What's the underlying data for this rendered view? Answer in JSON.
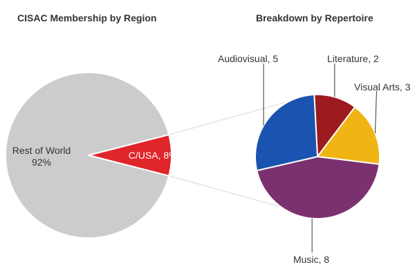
{
  "chart_data": [
    {
      "type": "pie",
      "title": "CISAC Membership by Region",
      "slices": [
        {
          "label": "C/USA",
          "value": 8,
          "value_text": "8%",
          "color": "#e0252b"
        },
        {
          "label": "Rest of World",
          "value": 92,
          "value_text": "92%",
          "color": "#cccccc"
        }
      ]
    },
    {
      "type": "pie",
      "title": "Breakdown by Repertoire",
      "slices": [
        {
          "label": "Literature",
          "value": 2,
          "color": "#9b1b1f"
        },
        {
          "label": "Visual Arts",
          "value": 3,
          "color": "#f0b414"
        },
        {
          "label": "Music",
          "value": 8,
          "color": "#7b3170"
        },
        {
          "label": "Audiovisual",
          "value": 5,
          "color": "#1a53b0"
        }
      ]
    }
  ],
  "connector_color": "#dddddd"
}
